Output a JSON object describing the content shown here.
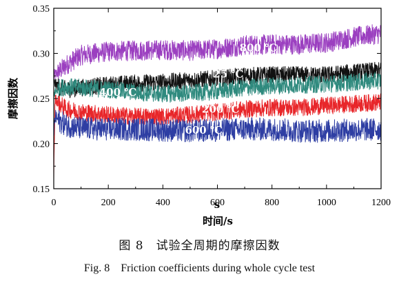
{
  "chart_data": {
    "type": "line",
    "xlabel": "时间/s",
    "xlabel_extra": "s",
    "ylabel": "摩擦因数",
    "xlim": [
      0,
      1200
    ],
    "ylim": [
      0.15,
      0.35
    ],
    "x_ticks": [
      0,
      200,
      400,
      600,
      800,
      1000,
      1200
    ],
    "y_ticks": [
      0.15,
      0.2,
      0.25,
      0.3,
      0.35
    ],
    "x_tick_labels": [
      "0",
      "200",
      "400",
      "600",
      "800",
      "1000",
      "1200"
    ],
    "y_tick_labels": [
      "0.15",
      "0.20",
      "0.25",
      "0.30",
      "0.35"
    ],
    "grid": false,
    "series": [
      {
        "name": "800 ℃",
        "color": "#9b3fc0",
        "x": [
          0,
          20,
          50,
          100,
          200,
          300,
          400,
          500,
          600,
          700,
          800,
          900,
          1000,
          1100,
          1200
        ],
        "y": [
          0.275,
          0.28,
          0.288,
          0.298,
          0.302,
          0.303,
          0.304,
          0.303,
          0.305,
          0.309,
          0.31,
          0.31,
          0.312,
          0.318,
          0.322
        ],
        "noise": 0.007
      },
      {
        "name": "25 ℃",
        "color": "#111111",
        "x": [
          0,
          20,
          50,
          100,
          200,
          300,
          400,
          500,
          600,
          700,
          800,
          900,
          1000,
          1100,
          1200
        ],
        "y": [
          0.268,
          0.262,
          0.26,
          0.262,
          0.265,
          0.267,
          0.268,
          0.27,
          0.272,
          0.275,
          0.276,
          0.276,
          0.276,
          0.279,
          0.281
        ],
        "noise": 0.006
      },
      {
        "name": "400 ℃",
        "color": "#2f8a7e",
        "x": [
          0,
          20,
          50,
          100,
          200,
          300,
          400,
          500,
          600,
          700,
          800,
          900,
          1000,
          1100,
          1200
        ],
        "y": [
          0.255,
          0.262,
          0.263,
          0.262,
          0.26,
          0.257,
          0.255,
          0.256,
          0.258,
          0.262,
          0.264,
          0.265,
          0.266,
          0.268,
          0.27
        ],
        "noise": 0.006
      },
      {
        "name": "200 ℃",
        "color": "#e8262a",
        "x": [
          0,
          5,
          20,
          50,
          100,
          200,
          300,
          400,
          500,
          600,
          700,
          800,
          900,
          1000,
          1100,
          1200
        ],
        "y": [
          0.165,
          0.25,
          0.244,
          0.238,
          0.235,
          0.232,
          0.23,
          0.23,
          0.232,
          0.235,
          0.238,
          0.24,
          0.24,
          0.242,
          0.244,
          0.246
        ],
        "noise": 0.006
      },
      {
        "name": "600 ℃",
        "color": "#2e3ea3",
        "x": [
          0,
          5,
          20,
          50,
          100,
          200,
          300,
          400,
          500,
          600,
          700,
          800,
          900,
          1000,
          1100,
          1200
        ],
        "y": [
          0.21,
          0.23,
          0.225,
          0.22,
          0.217,
          0.216,
          0.216,
          0.215,
          0.214,
          0.215,
          0.216,
          0.216,
          0.214,
          0.214,
          0.215,
          0.216
        ],
        "noise": 0.008
      }
    ],
    "annotations": [
      "800 ℃",
      "25 ℃",
      "400 ℃",
      "200 ℃",
      "600 ℃"
    ]
  },
  "caption": {
    "cn": "图 8　试验全周期的摩擦因数",
    "en": "Fig. 8　Friction coefficients during whole cycle test"
  }
}
